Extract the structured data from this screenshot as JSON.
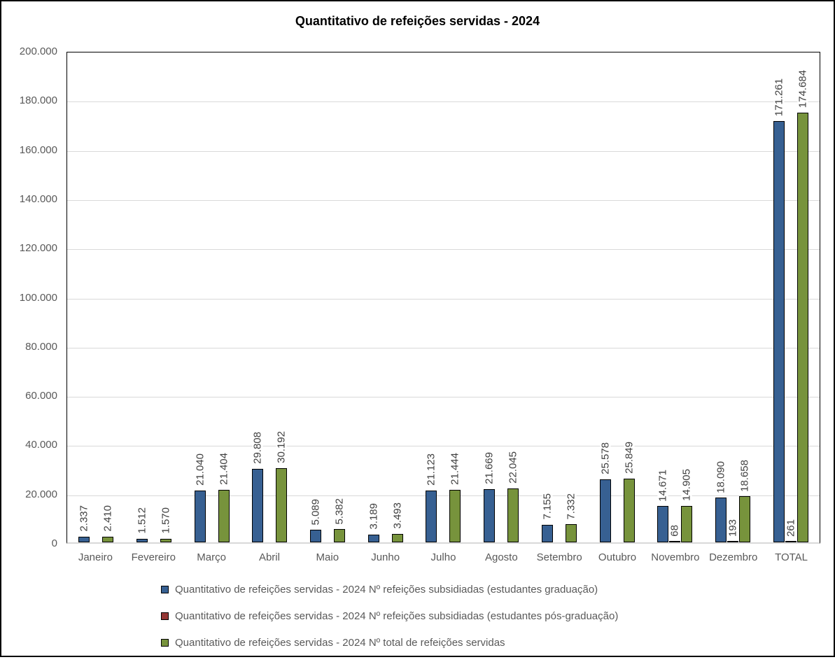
{
  "chart_data": {
    "type": "bar",
    "title": "Quantitativo de refeições servidas - 2024",
    "categories": [
      "Janeiro",
      "Fevereiro",
      "Março",
      "Abril",
      "Maio",
      "Junho",
      "Julho",
      "Agosto",
      "Setembro",
      "Outubro",
      "Novembro",
      "Dezembro",
      "TOTAL"
    ],
    "series": [
      {
        "name": "Quantitativo de refeições servidas - 2024 Nº refeições subsidiadas (estudantes graduação)",
        "color": "#376092",
        "values": [
          2337,
          1512,
          21040,
          29808,
          5089,
          3189,
          21123,
          21669,
          7155,
          25578,
          14671,
          18090,
          171261
        ],
        "labels": [
          "2.337",
          "1.512",
          "21.040",
          "29.808",
          "5.089",
          "3.189",
          "21.123",
          "21.669",
          "7.155",
          "25.578",
          "14.671",
          "18.090",
          "171.261"
        ]
      },
      {
        "name": "Quantitativo de refeições servidas - 2024 Nº refeições subsidiadas (estudantes pós-graduação)",
        "color": "#953735",
        "values": [
          null,
          null,
          null,
          null,
          null,
          null,
          null,
          null,
          null,
          null,
          68,
          193,
          261
        ],
        "labels": [
          null,
          null,
          null,
          null,
          null,
          null,
          null,
          null,
          null,
          null,
          "68",
          "193",
          "261"
        ]
      },
      {
        "name": "Quantitativo de refeições servidas - 2024 Nº total de refeições servidas",
        "color": "#77933C",
        "values": [
          2410,
          1570,
          21404,
          30192,
          5382,
          3493,
          21444,
          22045,
          7332,
          25849,
          14905,
          18658,
          174684
        ],
        "labels": [
          "2.410",
          "1.570",
          "21.404",
          "30.192",
          "5.382",
          "3.493",
          "21.444",
          "22.045",
          "7.332",
          "25.849",
          "14.905",
          "18.658",
          "174.684"
        ]
      }
    ],
    "ylim": [
      0,
      200000
    ],
    "ytick_step": 20000,
    "ytick_labels_top_to_bottom": [
      "200.000",
      "180.000",
      "160.000",
      "140.000",
      "120.000",
      "100.000",
      "80.000",
      "60.000",
      "40.000",
      "20.000",
      "0"
    ],
    "grid": true,
    "gridline_color": "#d9d9d9",
    "legend_position": "bottom"
  }
}
